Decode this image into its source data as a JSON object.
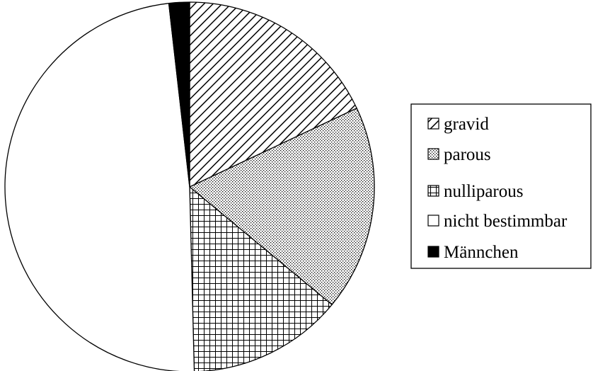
{
  "chart_data": {
    "type": "pie",
    "title": "",
    "start": "12 o'clock",
    "direction": "clockwise",
    "legend_position": "right",
    "slices": [
      {
        "label": "gravid",
        "value": 18.0,
        "pattern": "diagonal-hatch"
      },
      {
        "label": "parous",
        "value": 18.0,
        "pattern": "dots"
      },
      {
        "label": "nulliparous",
        "value": 13.6,
        "pattern": "grid"
      },
      {
        "label": "nicht bestimmbar",
        "value": 48.6,
        "pattern": "none"
      },
      {
        "label": "Männchen",
        "value": 1.8,
        "pattern": "solid"
      }
    ]
  }
}
